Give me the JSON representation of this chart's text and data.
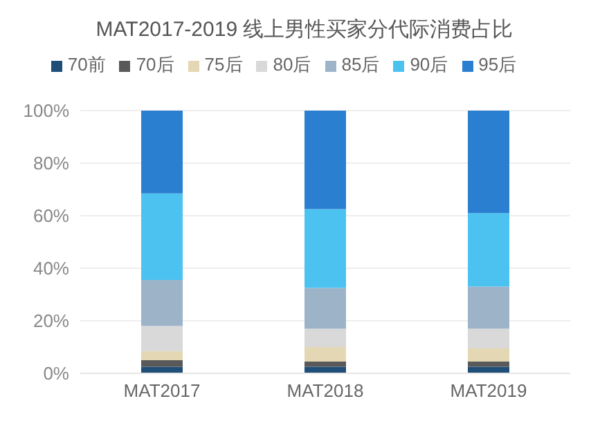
{
  "chart_data": {
    "type": "bar",
    "title": "MAT2017-2019 线上男性买家分代际消费占比",
    "categories": [
      "MAT2017",
      "MAT2018",
      "MAT2019"
    ],
    "stacked": true,
    "series": [
      {
        "name": "70前",
        "color": "#1f4e79",
        "values": [
          2.5,
          2.5,
          2.5
        ]
      },
      {
        "name": "70后",
        "color": "#595959",
        "values": [
          2.5,
          2,
          2
        ]
      },
      {
        "name": "75后",
        "color": "#e3d7b4",
        "values": [
          3.5,
          5.5,
          5
        ]
      },
      {
        "name": "80后",
        "color": "#d9d9d9",
        "values": [
          9.5,
          7,
          7.5
        ]
      },
      {
        "name": "85后",
        "color": "#9db4c8",
        "values": [
          17.5,
          15.5,
          16
        ]
      },
      {
        "name": "90后",
        "color": "#4cc2f0",
        "values": [
          33,
          30,
          28
        ]
      },
      {
        "name": "95后",
        "color": "#2a7fd0",
        "values": [
          31.5,
          37.5,
          39
        ]
      }
    ],
    "ylim": [
      0,
      100
    ],
    "yticks": [
      {
        "value": 0,
        "label": "0%"
      },
      {
        "value": 20,
        "label": "20%"
      },
      {
        "value": 40,
        "label": "40%"
      },
      {
        "value": 60,
        "label": "60%"
      },
      {
        "value": 80,
        "label": "80%"
      },
      {
        "value": 100,
        "label": "100%"
      }
    ],
    "grid": "y",
    "legend": "top"
  }
}
